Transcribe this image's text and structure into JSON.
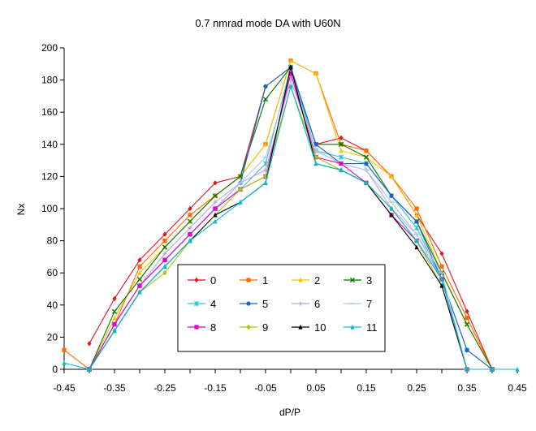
{
  "chart_data": {
    "type": "line",
    "title": "0.7 nmrad mode DA with U60N",
    "xlabel": "dP/P",
    "ylabel": "Nx",
    "xlim": [
      -0.45,
      0.45
    ],
    "ylim": [
      0,
      200
    ],
    "x_tick_labels": [
      "-0.45",
      "-0.35",
      "-0.25",
      "-0.15",
      "-0.05",
      "0.05",
      "0.15",
      "0.25",
      "0.35",
      "0.45"
    ],
    "y_tick_labels": [
      "0",
      "20",
      "40",
      "60",
      "80",
      "100",
      "120",
      "140",
      "160",
      "180",
      "200"
    ],
    "grid": false,
    "legend_position": "bottom-center",
    "x": [
      -0.45,
      -0.4,
      -0.35,
      -0.3,
      -0.25,
      -0.2,
      -0.15,
      -0.1,
      -0.05,
      0.0,
      0.05,
      0.1,
      0.15,
      0.2,
      0.25,
      0.3,
      0.35,
      0.4,
      0.45
    ],
    "series": [
      {
        "name": "0",
        "color": "#e0141e",
        "marker": "diamond",
        "values": [
          null,
          16,
          44,
          68,
          84,
          100,
          116,
          120,
          176,
          188,
          140,
          144,
          136,
          120,
          96,
          72,
          36,
          0,
          null
        ]
      },
      {
        "name": "1",
        "color": "#ff6a00",
        "marker": "square",
        "values": [
          12,
          0,
          28,
          64,
          80,
          96,
          108,
          120,
          140,
          192,
          184,
          140,
          136,
          120,
          100,
          64,
          32,
          0,
          null
        ]
      },
      {
        "name": "2",
        "color": "#f5c400",
        "marker": "triangle",
        "values": [
          null,
          0,
          32,
          60,
          76,
          92,
          108,
          120,
          140,
          192,
          184,
          136,
          132,
          120,
          96,
          60,
          28,
          0,
          null
        ]
      },
      {
        "name": "3",
        "color": "#007a00",
        "marker": "x",
        "values": [
          null,
          0,
          36,
          56,
          76,
          92,
          108,
          120,
          168,
          188,
          140,
          140,
          132,
          108,
          92,
          60,
          28,
          0,
          null
        ]
      },
      {
        "name": "4",
        "color": "#2cc3e0",
        "marker": "star",
        "values": [
          null,
          0,
          28,
          52,
          68,
          84,
          100,
          112,
          128,
          188,
          136,
          132,
          128,
          108,
          88,
          56,
          12,
          0,
          null
        ]
      },
      {
        "name": "5",
        "color": "#1f5fc8",
        "marker": "circle",
        "values": [
          null,
          0,
          28,
          52,
          68,
          84,
          100,
          116,
          176,
          188,
          140,
          128,
          128,
          108,
          92,
          56,
          12,
          0,
          null
        ]
      },
      {
        "name": "6",
        "color": "#c8a0e6",
        "marker": "plus",
        "values": [
          null,
          0,
          28,
          52,
          72,
          88,
          104,
          116,
          124,
          180,
          136,
          128,
          124,
          100,
          84,
          56,
          0,
          0,
          null
        ]
      },
      {
        "name": "7",
        "color": "#a8cce8",
        "marker": "dash",
        "values": [
          null,
          0,
          28,
          52,
          68,
          84,
          100,
          116,
          132,
          184,
          136,
          128,
          124,
          104,
          84,
          60,
          0,
          0,
          null
        ]
      },
      {
        "name": "8",
        "color": "#e000c8",
        "marker": "square",
        "values": [
          null,
          0,
          28,
          52,
          68,
          84,
          100,
          112,
          120,
          184,
          132,
          128,
          116,
          96,
          80,
          56,
          0,
          0,
          null
        ]
      },
      {
        "name": "9",
        "color": "#a8c800",
        "marker": "diamond",
        "values": [
          null,
          0,
          24,
          48,
          60,
          80,
          96,
          112,
          120,
          176,
          132,
          124,
          116,
          100,
          80,
          52,
          0,
          0,
          null
        ]
      },
      {
        "name": "10",
        "color": "#000000",
        "marker": "triangle",
        "values": [
          null,
          0,
          24,
          48,
          64,
          80,
          96,
          104,
          116,
          188,
          128,
          124,
          116,
          96,
          76,
          52,
          0,
          0,
          null
        ]
      },
      {
        "name": "11",
        "color": "#00bcd8",
        "marker": "triangle",
        "values": [
          4,
          0,
          24,
          48,
          64,
          80,
          92,
          104,
          116,
          176,
          128,
          124,
          116,
          100,
          80,
          56,
          0,
          0,
          0
        ]
      }
    ]
  }
}
